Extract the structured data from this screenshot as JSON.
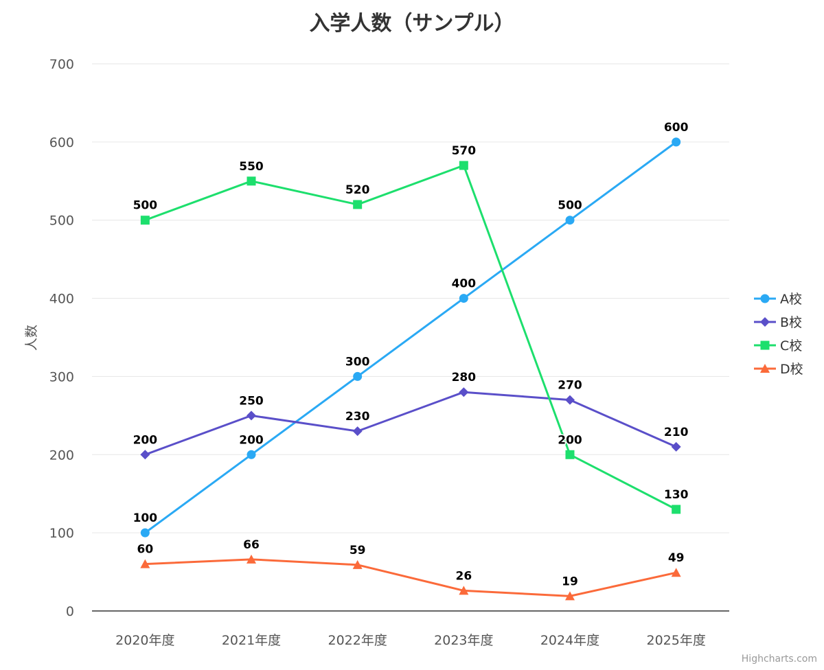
{
  "chart_data": {
    "type": "line",
    "title": "入学人数（サンプル）",
    "ylabel": "人数",
    "xlabel": "",
    "categories": [
      "2020年度",
      "2021年度",
      "2022年度",
      "2023年度",
      "2024年度",
      "2025年度"
    ],
    "ylim": [
      0,
      700
    ],
    "yticks": [
      0,
      100,
      200,
      300,
      400,
      500,
      600,
      700
    ],
    "grid": true,
    "legend_position": "right",
    "series": [
      {
        "name": "A校",
        "color": "#2aa9f4",
        "marker": "circle",
        "values": [
          100,
          200,
          300,
          400,
          500,
          600
        ]
      },
      {
        "name": "B校",
        "color": "#5a4fc9",
        "marker": "diamond",
        "values": [
          200,
          250,
          230,
          280,
          270,
          210
        ]
      },
      {
        "name": "C校",
        "color": "#1ddf6d",
        "marker": "square",
        "values": [
          500,
          550,
          520,
          570,
          200,
          130
        ]
      },
      {
        "name": "D校",
        "color": "#fb6a3a",
        "marker": "triangle",
        "values": [
          60,
          66,
          59,
          26,
          19,
          49
        ]
      }
    ],
    "credits": "Highcharts.com"
  }
}
